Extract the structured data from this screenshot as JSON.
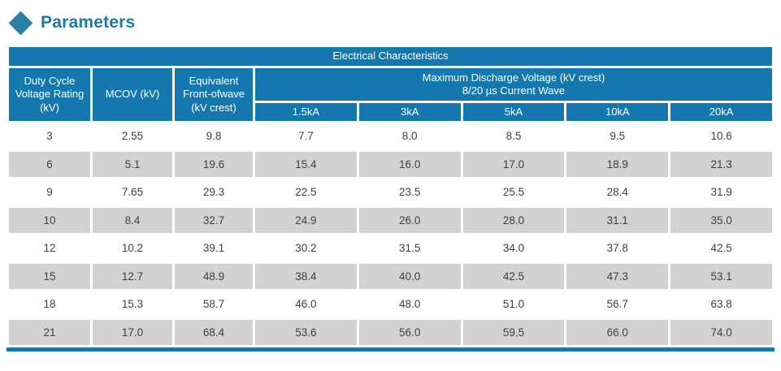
{
  "page": {
    "title": "Parameters"
  },
  "colors": {
    "accent_blue": "#1478af",
    "title_teal": "#1c7ca8",
    "row_alt_gray": "#d2d2d2",
    "cell_text": "#404040"
  },
  "table": {
    "title": "Electrical Characteristics",
    "header": {
      "duty_cycle": "Duty Cycle Voltage Rating (kV)",
      "mcov": "MCOV (kV)",
      "equivalent": "Equivalent Front-ofwave (kV crest)",
      "discharge_line1": "Maximum Discharge Voltage (kV crest)",
      "discharge_line2": "8/20 µs Current Wave",
      "current_columns": [
        "1.5kA",
        "3kA",
        "5kA",
        "10kA",
        "20kA"
      ]
    },
    "rows": [
      [
        "3",
        "2.55",
        "9.8",
        "7.7",
        "8.0",
        "8.5",
        "9.5",
        "10.6"
      ],
      [
        "6",
        "5.1",
        "19.6",
        "15.4",
        "16.0",
        "17.0",
        "18.9",
        "21.3"
      ],
      [
        "9",
        "7.65",
        "29.3",
        "22.5",
        "23.5",
        "25.5",
        "28.4",
        "31.9"
      ],
      [
        "10",
        "8.4",
        "32.7",
        "24.9",
        "26.0",
        "28.0",
        "31.1",
        "35.0"
      ],
      [
        "12",
        "10.2",
        "39.1",
        "30.2",
        "31.5",
        "34.0",
        "37.8",
        "42.5"
      ],
      [
        "15",
        "12.7",
        "48.9",
        "38.4",
        "40.0",
        "42.5",
        "47.3",
        "53.1"
      ],
      [
        "18",
        "15.3",
        "58.7",
        "46.0",
        "48.0",
        "51.0",
        "56.7",
        "63.8"
      ],
      [
        "21",
        "17.0",
        "68.4",
        "53.6",
        "56.0",
        "59.5",
        "66.0",
        "74.0"
      ]
    ]
  }
}
